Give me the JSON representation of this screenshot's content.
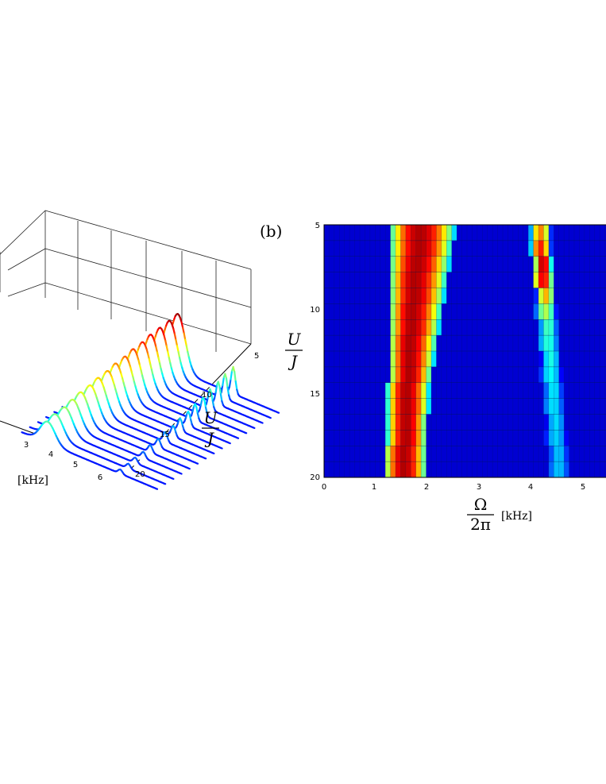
{
  "panel_b_label": "(b)",
  "chart_data": [
    {
      "panel": "a",
      "type": "line",
      "x_axis": {
        "ticks": [
          "3",
          "4",
          "5",
          "6"
        ],
        "unit": "[kHz]"
      },
      "y_axis": {
        "label_num": "U",
        "label_den": "J",
        "ticks": [
          "5",
          "10",
          "15",
          "20"
        ]
      },
      "series_u": [
        5,
        6,
        7,
        8,
        9,
        10,
        11,
        12,
        13,
        14,
        15,
        16,
        17,
        18,
        19,
        20
      ],
      "peaks": [
        {
          "u": 5,
          "main_center": 1.9,
          "main_height": 0.95,
          "side_center": 4.15,
          "side_height": 0.45
        },
        {
          "u": 6,
          "main_center": 1.9,
          "main_height": 0.92,
          "side_center": 4.15,
          "side_height": 0.42
        },
        {
          "u": 7,
          "main_center": 1.85,
          "main_height": 0.88,
          "side_center": 4.2,
          "side_height": 0.38
        },
        {
          "u": 8,
          "main_center": 1.8,
          "main_height": 0.84,
          "side_center": 4.2,
          "side_height": 0.34
        },
        {
          "u": 9,
          "main_center": 1.8,
          "main_height": 0.8,
          "side_center": 4.25,
          "side_height": 0.3
        },
        {
          "u": 10,
          "main_center": 1.75,
          "main_height": 0.76,
          "side_center": 4.25,
          "side_height": 0.27
        },
        {
          "u": 11,
          "main_center": 1.75,
          "main_height": 0.72,
          "side_center": 4.3,
          "side_height": 0.24
        },
        {
          "u": 12,
          "main_center": 1.7,
          "main_height": 0.68,
          "side_center": 4.3,
          "side_height": 0.21
        },
        {
          "u": 13,
          "main_center": 1.7,
          "main_height": 0.64,
          "side_center": 4.35,
          "side_height": 0.18
        },
        {
          "u": 14,
          "main_center": 1.65,
          "main_height": 0.6,
          "side_center": 4.35,
          "side_height": 0.16
        },
        {
          "u": 15,
          "main_center": 1.65,
          "main_height": 0.56,
          "side_center": 4.4,
          "side_height": 0.14
        },
        {
          "u": 16,
          "main_center": 1.6,
          "main_height": 0.52,
          "side_center": 4.4,
          "side_height": 0.12
        },
        {
          "u": 17,
          "main_center": 1.6,
          "main_height": 0.48,
          "side_center": 4.45,
          "side_height": 0.1
        },
        {
          "u": 18,
          "main_center": 1.6,
          "main_height": 0.44,
          "side_center": 4.45,
          "side_height": 0.09
        },
        {
          "u": 19,
          "main_center": 1.55,
          "main_height": 0.4,
          "side_center": 4.5,
          "side_height": 0.08
        },
        {
          "u": 20,
          "main_center": 1.55,
          "main_height": 0.36,
          "side_center": 4.5,
          "side_height": 0.07
        }
      ]
    },
    {
      "panel": "b",
      "type": "heatmap",
      "x_axis": {
        "label_num": "Ω",
        "label_den": "2π",
        "unit": "[kHz]",
        "ticks": [
          "0",
          "1",
          "2",
          "3",
          "4",
          "5"
        ],
        "range": [
          0,
          5.55
        ]
      },
      "y_axis": {
        "label_num": "U",
        "label_den": "J",
        "ticks": [
          "5",
          "10",
          "15",
          "20"
        ],
        "range": [
          5,
          20
        ]
      },
      "rows_u": [
        5,
        6,
        7,
        8,
        9,
        10,
        11,
        12,
        13,
        14,
        15,
        16,
        17,
        18,
        19,
        20
      ],
      "bands": [
        {
          "u": 5,
          "main_left": 1.25,
          "main_right": 2.55,
          "main_peak": 1.85,
          "side_left": 4.0,
          "side_right": 4.45,
          "side_peak": 4.2,
          "side_height": 0.75
        },
        {
          "u": 6,
          "main_left": 1.25,
          "main_right": 2.5,
          "main_peak": 1.85,
          "side_left": 4.0,
          "side_right": 4.45,
          "side_peak": 4.2,
          "side_height": 0.85
        },
        {
          "u": 7,
          "main_left": 1.25,
          "main_right": 2.45,
          "main_peak": 1.8,
          "side_left": 4.05,
          "side_right": 4.45,
          "side_peak": 4.25,
          "side_height": 0.95
        },
        {
          "u": 8,
          "main_left": 1.25,
          "main_right": 2.4,
          "main_peak": 1.75,
          "side_left": 4.05,
          "side_right": 4.5,
          "side_peak": 4.25,
          "side_height": 0.9
        },
        {
          "u": 9,
          "main_left": 1.25,
          "main_right": 2.35,
          "main_peak": 1.75,
          "side_left": 4.1,
          "side_right": 4.5,
          "side_peak": 4.3,
          "side_height": 0.7
        },
        {
          "u": 10,
          "main_left": 1.25,
          "main_right": 2.3,
          "main_peak": 1.7,
          "side_left": 4.1,
          "side_right": 4.55,
          "side_peak": 4.3,
          "side_height": 0.55
        },
        {
          "u": 11,
          "main_left": 1.25,
          "main_right": 2.25,
          "main_peak": 1.7,
          "side_left": 4.15,
          "side_right": 4.55,
          "side_peak": 4.35,
          "side_height": 0.45
        },
        {
          "u": 12,
          "main_left": 1.25,
          "main_right": 2.2,
          "main_peak": 1.65,
          "side_left": 4.15,
          "side_right": 4.6,
          "side_peak": 4.35,
          "side_height": 0.42
        },
        {
          "u": 13,
          "main_left": 1.25,
          "main_right": 2.15,
          "main_peak": 1.65,
          "side_left": 4.2,
          "side_right": 4.6,
          "side_peak": 4.4,
          "side_height": 0.4
        },
        {
          "u": 14,
          "main_left": 1.25,
          "main_right": 2.1,
          "main_peak": 1.65,
          "side_left": 4.2,
          "side_right": 4.65,
          "side_peak": 4.4,
          "side_height": 0.38
        },
        {
          "u": 15,
          "main_left": 1.2,
          "main_right": 2.05,
          "main_peak": 1.6,
          "side_left": 4.25,
          "side_right": 4.65,
          "side_peak": 4.45,
          "side_height": 0.36
        },
        {
          "u": 16,
          "main_left": 1.2,
          "main_right": 2.05,
          "main_peak": 1.6,
          "side_left": 4.25,
          "side_right": 4.7,
          "side_peak": 4.45,
          "side_height": 0.35
        },
        {
          "u": 17,
          "main_left": 1.2,
          "main_right": 2.0,
          "main_peak": 1.6,
          "side_left": 4.3,
          "side_right": 4.7,
          "side_peak": 4.5,
          "side_height": 0.34
        },
        {
          "u": 18,
          "main_left": 1.2,
          "main_right": 2.0,
          "main_peak": 1.6,
          "side_left": 4.3,
          "side_right": 4.75,
          "side_peak": 4.5,
          "side_height": 0.33
        },
        {
          "u": 19,
          "main_left": 1.15,
          "main_right": 2.0,
          "main_peak": 1.55,
          "side_left": 4.35,
          "side_right": 4.75,
          "side_peak": 4.55,
          "side_height": 0.32
        },
        {
          "u": 20,
          "main_left": 1.15,
          "main_right": 2.0,
          "main_peak": 1.55,
          "side_left": 4.35,
          "side_right": 4.8,
          "side_peak": 4.55,
          "side_height": 0.32
        }
      ]
    }
  ]
}
